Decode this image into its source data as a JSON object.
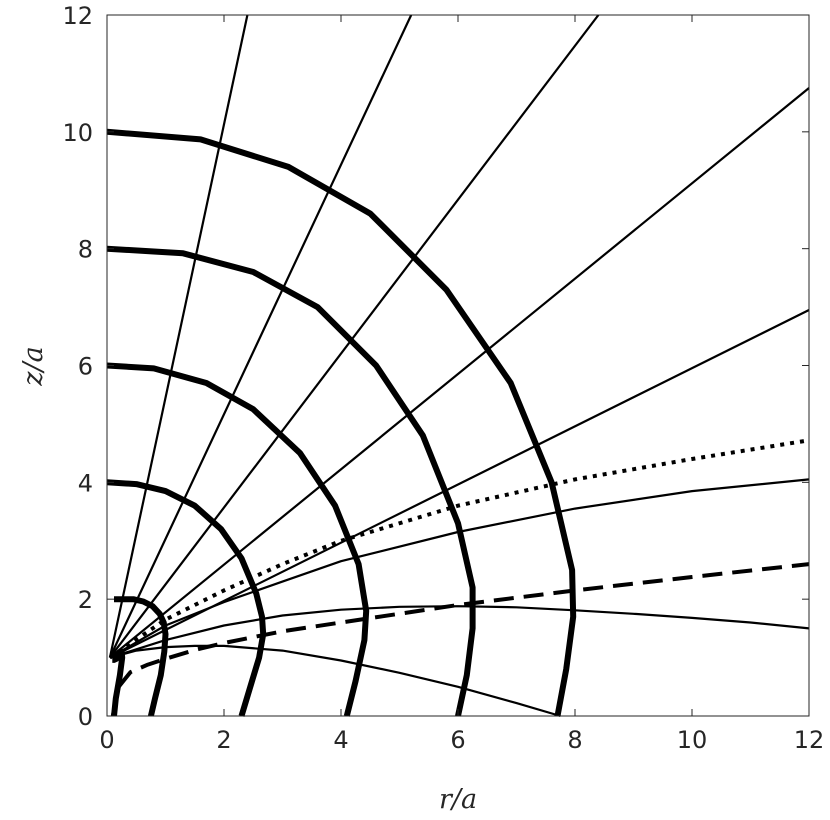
{
  "chart_data": {
    "type": "line",
    "title": "",
    "xlabel": "r/a",
    "ylabel": "z/a",
    "xlim": [
      0,
      12
    ],
    "ylim": [
      0,
      12
    ],
    "grid": false,
    "legend": "none",
    "x_ticks": [
      "0",
      "2",
      "4",
      "6",
      "8",
      "10",
      "12"
    ],
    "y_ticks": [
      "0",
      "2",
      "4",
      "6",
      "8",
      "10",
      "12"
    ],
    "colors": {
      "lines": "#000000",
      "axes": "#262626",
      "background": "#ffffff"
    },
    "thick_curves": [
      {
        "x": [
          0.12,
          0.15,
          0.22,
          0.26,
          0.25,
          0.21,
          0.16,
          0.12,
          0.09
        ],
        "y": [
          0.0,
          0.3,
          0.7,
          1.0,
          1.1,
          1.05,
          0.98,
          0.96,
          0.96
        ]
      },
      {
        "x": [
          0.75,
          0.82,
          0.92,
          0.98,
          1.0,
          0.97,
          0.9,
          0.78,
          0.62,
          0.45,
          0.28,
          0.12
        ],
        "y": [
          0.0,
          0.3,
          0.7,
          1.1,
          1.4,
          1.6,
          1.75,
          1.88,
          1.96,
          2.0,
          2.0,
          2.0
        ]
      },
      {
        "x": [
          2.3,
          2.45,
          2.6,
          2.67,
          2.65,
          2.55,
          2.3,
          1.95,
          1.5,
          1.0,
          0.5,
          0.0
        ],
        "y": [
          0.0,
          0.5,
          1.0,
          1.4,
          1.7,
          2.1,
          2.7,
          3.2,
          3.6,
          3.85,
          3.97,
          4.0
        ]
      },
      {
        "x": [
          4.1,
          4.25,
          4.4,
          4.43,
          4.3,
          3.9,
          3.3,
          2.5,
          1.7,
          0.8,
          0.0
        ],
        "y": [
          0.0,
          0.6,
          1.3,
          1.8,
          2.6,
          3.6,
          4.5,
          5.25,
          5.7,
          5.95,
          6.0
        ]
      },
      {
        "x": [
          6.0,
          6.15,
          6.25,
          6.25,
          6.0,
          5.4,
          4.6,
          3.6,
          2.5,
          1.3,
          0.0
        ],
        "y": [
          0.0,
          0.7,
          1.5,
          2.2,
          3.3,
          4.8,
          6.0,
          7.0,
          7.6,
          7.92,
          8.0
        ]
      },
      {
        "x": [
          7.7,
          7.85,
          7.97,
          7.95,
          7.6,
          6.9,
          5.8,
          4.5,
          3.1,
          1.6,
          0.0
        ],
        "y": [
          0.0,
          0.8,
          1.7,
          2.5,
          4.0,
          5.7,
          7.3,
          8.6,
          9.4,
          9.87,
          10.0
        ]
      }
    ],
    "thin_lines": [
      {
        "x": [
          0.05,
          2.4
        ],
        "y": [
          1.0,
          12.0
        ]
      },
      {
        "x": [
          0.05,
          5.2
        ],
        "y": [
          1.0,
          12.0
        ]
      },
      {
        "x": [
          0.05,
          8.4
        ],
        "y": [
          1.0,
          12.0
        ]
      },
      {
        "x": [
          0.05,
          12.0
        ],
        "y": [
          1.0,
          10.75
        ]
      },
      {
        "x": [
          0.05,
          12.0
        ],
        "y": [
          1.0,
          6.95
        ]
      },
      {
        "x": [
          0.05,
          1,
          2,
          3,
          4,
          6,
          8,
          10,
          12
        ],
        "y": [
          1.0,
          1.55,
          1.95,
          2.3,
          2.65,
          3.15,
          3.55,
          3.85,
          4.05
        ]
      },
      {
        "x": [
          0.05,
          1,
          2,
          3,
          4,
          5,
          6,
          7,
          8,
          9,
          10,
          11,
          12
        ],
        "y": [
          1.0,
          1.3,
          1.55,
          1.72,
          1.82,
          1.87,
          1.88,
          1.86,
          1.81,
          1.75,
          1.68,
          1.6,
          1.5
        ]
      },
      {
        "x": [
          0.05,
          0.5,
          1,
          1.5,
          2,
          3,
          4,
          5,
          6,
          7,
          7.75
        ],
        "y": [
          1.0,
          1.12,
          1.18,
          1.2,
          1.2,
          1.12,
          0.95,
          0.74,
          0.5,
          0.22,
          0.0
        ]
      }
    ],
    "dotted_line": {
      "x": [
        0.05,
        1,
        2,
        3,
        4,
        6,
        8,
        10,
        12
      ],
      "y": [
        1.0,
        1.65,
        2.15,
        2.6,
        3.0,
        3.6,
        4.05,
        4.4,
        4.72
      ]
    },
    "dashed_line": {
      "x": [
        0.1,
        0.2,
        0.4,
        0.7,
        1,
        1.5,
        2,
        3,
        4,
        6,
        8,
        10,
        12
      ],
      "y": [
        0.0,
        0.5,
        0.75,
        0.88,
        0.98,
        1.13,
        1.25,
        1.45,
        1.6,
        1.9,
        2.15,
        2.38,
        2.6
      ]
    }
  }
}
